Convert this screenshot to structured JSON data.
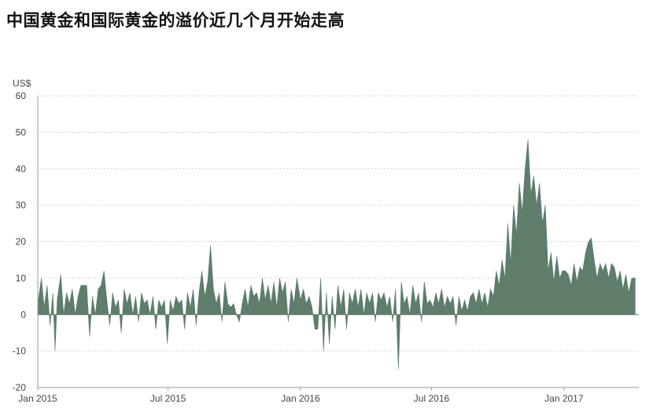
{
  "title": "中国黄金和国际黄金的溢价近几个月开始走高",
  "colors": {
    "area": "#5e7d6b",
    "grid": "#d6d6d6",
    "axis": "#9a9a9a"
  },
  "chart_data": {
    "type": "area",
    "title": "中国黄金和国际黄金的溢价近几个月开始走高",
    "ylabel": "US$",
    "xlabel": "",
    "ylim": [
      -20,
      60
    ],
    "y_ticks": [
      -20,
      -10,
      0,
      10,
      20,
      30,
      40,
      50,
      60
    ],
    "x_range": [
      "2015-01-01",
      "2017-04-15"
    ],
    "x_ticks": [
      {
        "date": "2015-01-01",
        "label": "Jan 2015"
      },
      {
        "date": "2015-07-01",
        "label": "Jul 2015"
      },
      {
        "date": "2016-01-01",
        "label": "Jan 2016"
      },
      {
        "date": "2016-07-01",
        "label": "Jul 2016"
      },
      {
        "date": "2017-01-01",
        "label": "Jan 2017"
      }
    ],
    "grid": true,
    "series": [
      {
        "name": "",
        "points": [
          [
            "2015-01-01",
            3
          ],
          [
            "2015-01-06",
            10
          ],
          [
            "2015-01-10",
            2
          ],
          [
            "2015-01-14",
            8
          ],
          [
            "2015-01-18",
            -3
          ],
          [
            "2015-01-22",
            6
          ],
          [
            "2015-01-25",
            -10
          ],
          [
            "2015-01-28",
            4
          ],
          [
            "2015-02-02",
            11
          ],
          [
            "2015-02-06",
            0
          ],
          [
            "2015-02-10",
            6
          ],
          [
            "2015-02-14",
            3
          ],
          [
            "2015-02-18",
            7
          ],
          [
            "2015-02-22",
            0
          ],
          [
            "2015-02-26",
            5
          ],
          [
            "2015-03-02",
            8
          ],
          [
            "2015-03-06",
            8
          ],
          [
            "2015-03-10",
            8
          ],
          [
            "2015-03-14",
            -6
          ],
          [
            "2015-03-18",
            5
          ],
          [
            "2015-03-22",
            0
          ],
          [
            "2015-03-26",
            7
          ],
          [
            "2015-03-30",
            8
          ],
          [
            "2015-04-03",
            12
          ],
          [
            "2015-04-07",
            4
          ],
          [
            "2015-04-11",
            -3
          ],
          [
            "2015-04-15",
            6
          ],
          [
            "2015-04-19",
            2
          ],
          [
            "2015-04-23",
            4
          ],
          [
            "2015-04-27",
            -5
          ],
          [
            "2015-05-01",
            7
          ],
          [
            "2015-05-05",
            3
          ],
          [
            "2015-05-09",
            6
          ],
          [
            "2015-05-13",
            0
          ],
          [
            "2015-05-17",
            5
          ],
          [
            "2015-05-21",
            -2
          ],
          [
            "2015-05-25",
            6
          ],
          [
            "2015-05-29",
            3
          ],
          [
            "2015-06-02",
            4
          ],
          [
            "2015-06-06",
            0
          ],
          [
            "2015-06-10",
            5
          ],
          [
            "2015-06-14",
            -4
          ],
          [
            "2015-06-18",
            4
          ],
          [
            "2015-06-22",
            2
          ],
          [
            "2015-06-26",
            4
          ],
          [
            "2015-06-30",
            -8
          ],
          [
            "2015-07-04",
            4
          ],
          [
            "2015-07-08",
            1
          ],
          [
            "2015-07-12",
            5
          ],
          [
            "2015-07-16",
            3
          ],
          [
            "2015-07-20",
            4
          ],
          [
            "2015-07-24",
            -4
          ],
          [
            "2015-07-28",
            6
          ],
          [
            "2015-08-01",
            2
          ],
          [
            "2015-08-05",
            7
          ],
          [
            "2015-08-09",
            -3
          ],
          [
            "2015-08-13",
            6
          ],
          [
            "2015-08-17",
            12
          ],
          [
            "2015-08-21",
            5
          ],
          [
            "2015-08-25",
            9
          ],
          [
            "2015-08-29",
            19
          ],
          [
            "2015-09-02",
            7
          ],
          [
            "2015-09-06",
            3
          ],
          [
            "2015-09-10",
            6
          ],
          [
            "2015-09-14",
            -2
          ],
          [
            "2015-09-18",
            9
          ],
          [
            "2015-09-22",
            3
          ],
          [
            "2015-09-26",
            2
          ],
          [
            "2015-09-30",
            3
          ],
          [
            "2015-10-04",
            0
          ],
          [
            "2015-10-08",
            -2
          ],
          [
            "2015-10-12",
            3
          ],
          [
            "2015-10-16",
            7
          ],
          [
            "2015-10-20",
            2
          ],
          [
            "2015-10-24",
            8
          ],
          [
            "2015-10-28",
            5
          ],
          [
            "2015-11-01",
            6
          ],
          [
            "2015-11-05",
            3
          ],
          [
            "2015-11-09",
            10
          ],
          [
            "2015-11-13",
            4
          ],
          [
            "2015-11-17",
            8
          ],
          [
            "2015-11-21",
            3
          ],
          [
            "2015-11-25",
            9
          ],
          [
            "2015-11-29",
            2
          ],
          [
            "2015-12-03",
            10
          ],
          [
            "2015-12-07",
            6
          ],
          [
            "2015-12-11",
            9
          ],
          [
            "2015-12-15",
            -2
          ],
          [
            "2015-12-19",
            7
          ],
          [
            "2015-12-23",
            3
          ],
          [
            "2015-12-27",
            10
          ],
          [
            "2016-01-01",
            4
          ],
          [
            "2016-01-05",
            7
          ],
          [
            "2016-01-09",
            3
          ],
          [
            "2016-01-13",
            5
          ],
          [
            "2016-01-17",
            2
          ],
          [
            "2016-01-21",
            -4
          ],
          [
            "2016-01-25",
            -4
          ],
          [
            "2016-01-29",
            10
          ],
          [
            "2016-02-02",
            -10
          ],
          [
            "2016-02-06",
            6
          ],
          [
            "2016-02-10",
            -8
          ],
          [
            "2016-02-14",
            5
          ],
          [
            "2016-02-18",
            -4
          ],
          [
            "2016-02-22",
            8
          ],
          [
            "2016-02-26",
            2
          ],
          [
            "2016-03-01",
            7
          ],
          [
            "2016-03-05",
            -4
          ],
          [
            "2016-03-09",
            6
          ],
          [
            "2016-03-13",
            3
          ],
          [
            "2016-03-17",
            7
          ],
          [
            "2016-03-21",
            2
          ],
          [
            "2016-03-25",
            7
          ],
          [
            "2016-03-29",
            0
          ],
          [
            "2016-04-02",
            6
          ],
          [
            "2016-04-06",
            3
          ],
          [
            "2016-04-10",
            6
          ],
          [
            "2016-04-14",
            -2
          ],
          [
            "2016-04-18",
            6
          ],
          [
            "2016-04-22",
            4
          ],
          [
            "2016-04-26",
            6
          ],
          [
            "2016-04-30",
            2
          ],
          [
            "2016-05-04",
            5
          ],
          [
            "2016-05-08",
            -2
          ],
          [
            "2016-05-12",
            7
          ],
          [
            "2016-05-16",
            -15
          ],
          [
            "2016-05-20",
            9
          ],
          [
            "2016-05-24",
            3
          ],
          [
            "2016-05-28",
            5
          ],
          [
            "2016-06-01",
            0
          ],
          [
            "2016-06-05",
            8
          ],
          [
            "2016-06-09",
            3
          ],
          [
            "2016-06-13",
            6
          ],
          [
            "2016-06-17",
            -2
          ],
          [
            "2016-06-21",
            9
          ],
          [
            "2016-06-25",
            3
          ],
          [
            "2016-06-29",
            4
          ],
          [
            "2016-07-03",
            2
          ],
          [
            "2016-07-07",
            6
          ],
          [
            "2016-07-11",
            3
          ],
          [
            "2016-07-15",
            7
          ],
          [
            "2016-07-19",
            2
          ],
          [
            "2016-07-23",
            5
          ],
          [
            "2016-07-27",
            3
          ],
          [
            "2016-07-31",
            5
          ],
          [
            "2016-08-04",
            -3
          ],
          [
            "2016-08-08",
            5
          ],
          [
            "2016-08-12",
            1
          ],
          [
            "2016-08-16",
            4
          ],
          [
            "2016-08-20",
            1
          ],
          [
            "2016-08-24",
            5
          ],
          [
            "2016-08-28",
            6
          ],
          [
            "2016-09-01",
            3
          ],
          [
            "2016-09-05",
            7
          ],
          [
            "2016-09-09",
            3
          ],
          [
            "2016-09-13",
            6
          ],
          [
            "2016-09-17",
            2
          ],
          [
            "2016-09-21",
            7
          ],
          [
            "2016-09-25",
            5
          ],
          [
            "2016-09-29",
            12
          ],
          [
            "2016-10-03",
            8
          ],
          [
            "2016-10-07",
            15
          ],
          [
            "2016-10-11",
            10
          ],
          [
            "2016-10-15",
            25
          ],
          [
            "2016-10-19",
            14
          ],
          [
            "2016-10-23",
            30
          ],
          [
            "2016-10-27",
            22
          ],
          [
            "2016-10-31",
            36
          ],
          [
            "2016-11-04",
            28
          ],
          [
            "2016-11-08",
            40
          ],
          [
            "2016-11-12",
            48
          ],
          [
            "2016-11-16",
            33
          ],
          [
            "2016-11-20",
            38
          ],
          [
            "2016-11-24",
            30
          ],
          [
            "2016-11-28",
            36
          ],
          [
            "2016-12-02",
            25
          ],
          [
            "2016-12-06",
            30
          ],
          [
            "2016-12-10",
            12
          ],
          [
            "2016-12-14",
            17
          ],
          [
            "2016-12-18",
            9
          ],
          [
            "2016-12-22",
            16
          ],
          [
            "2016-12-26",
            10
          ],
          [
            "2016-12-30",
            12
          ],
          [
            "2017-01-03",
            12
          ],
          [
            "2017-01-07",
            11
          ],
          [
            "2017-01-11",
            8
          ],
          [
            "2017-01-15",
            14
          ],
          [
            "2017-01-19",
            9
          ],
          [
            "2017-01-23",
            13
          ],
          [
            "2017-01-27",
            12
          ],
          [
            "2017-01-31",
            17
          ],
          [
            "2017-02-04",
            20
          ],
          [
            "2017-02-08",
            21
          ],
          [
            "2017-02-12",
            15
          ],
          [
            "2017-02-16",
            10
          ],
          [
            "2017-02-20",
            14
          ],
          [
            "2017-02-24",
            12
          ],
          [
            "2017-02-28",
            14
          ],
          [
            "2017-03-04",
            10
          ],
          [
            "2017-03-08",
            14
          ],
          [
            "2017-03-12",
            13
          ],
          [
            "2017-03-16",
            9
          ],
          [
            "2017-03-20",
            12
          ],
          [
            "2017-03-24",
            7
          ],
          [
            "2017-03-28",
            11
          ],
          [
            "2017-04-01",
            6
          ],
          [
            "2017-04-05",
            10
          ],
          [
            "2017-04-10",
            10
          ]
        ]
      }
    ]
  }
}
